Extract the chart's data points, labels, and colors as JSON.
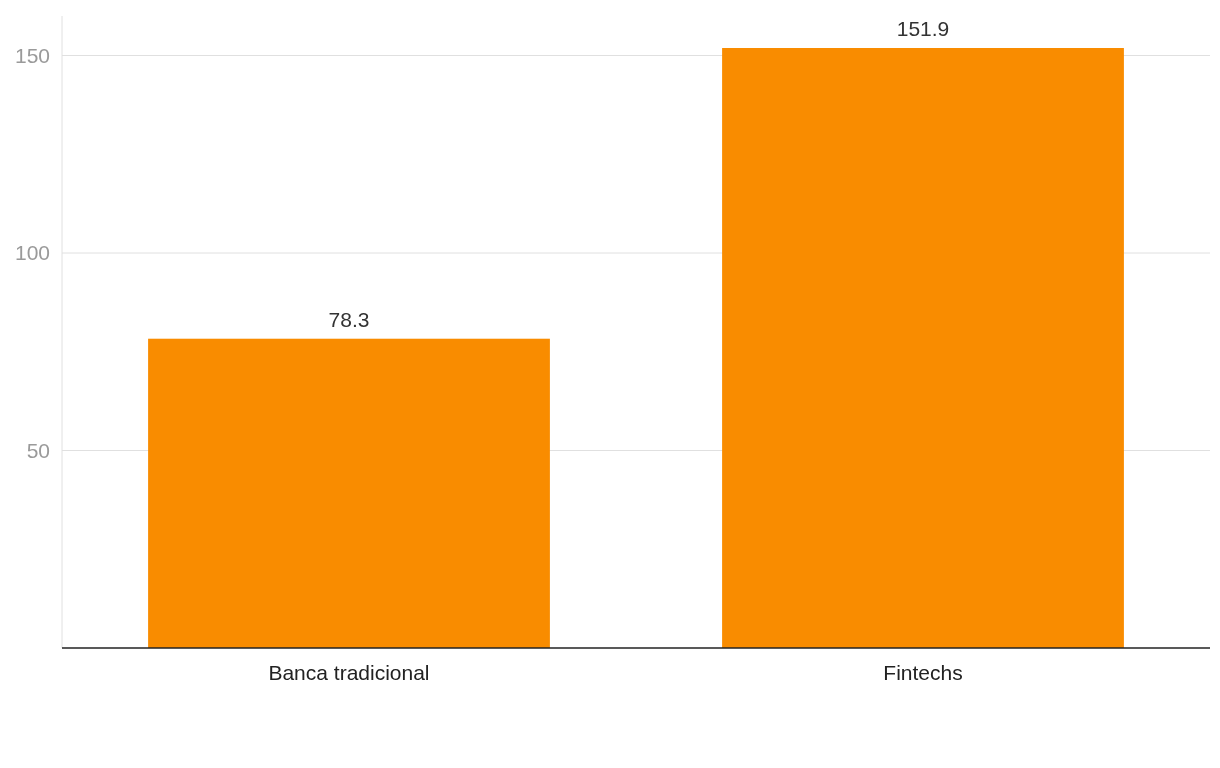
{
  "chart_data": {
    "type": "bar",
    "categories": [
      "Banca tradicional",
      "Fintechs"
    ],
    "values": [
      78.3,
      151.9
    ],
    "color": "#f98c00",
    "ylim": [
      0,
      160
    ],
    "yticks": [
      50,
      100,
      150
    ],
    "grid": "y",
    "data_labels": true
  }
}
